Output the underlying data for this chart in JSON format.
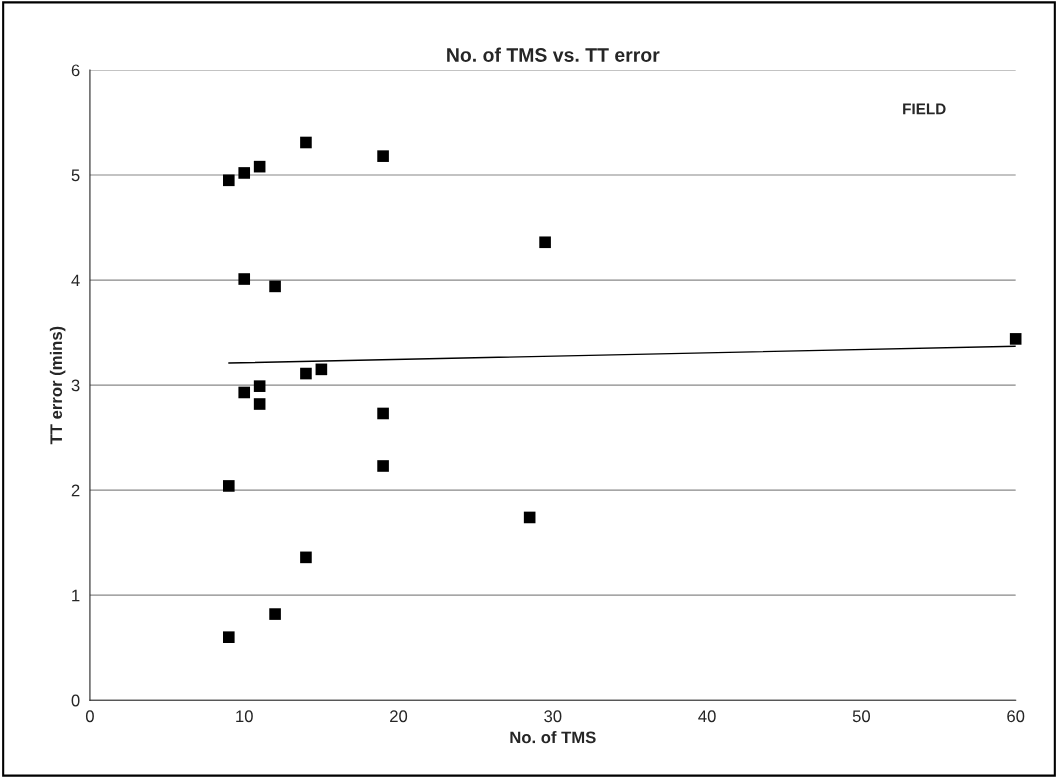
{
  "chart_data": {
    "type": "scatter",
    "title": "No. of TMS vs. TT error",
    "xlabel": "No. of TMS",
    "ylabel": "TT error (mins)",
    "annotations": [
      "FIELD"
    ],
    "series": [
      {
        "color": "#000000",
        "marker": "square",
        "x": [
          9,
          10,
          11,
          14,
          19,
          29.5,
          10,
          12,
          60,
          14,
          15,
          11,
          10,
          11,
          19,
          19,
          9,
          28.5,
          14,
          12,
          9
        ],
        "values": [
          4.95,
          5.02,
          5.08,
          5.31,
          5.18,
          4.36,
          4.01,
          3.94,
          3.44,
          3.11,
          3.15,
          2.99,
          2.93,
          2.82,
          2.73,
          2.23,
          2.04,
          1.74,
          1.36,
          0.82,
          0.6
        ]
      },
      {
        "type": "line",
        "color": "#000000",
        "marker": "none",
        "x": [
          9,
          60
        ],
        "values": [
          3.21,
          3.37
        ]
      }
    ],
    "xlim": [
      0,
      60
    ],
    "xticks": [
      0,
      10,
      20,
      30,
      40,
      50,
      60
    ],
    "ylim": [
      0,
      6
    ],
    "yticks": [
      0,
      1,
      2,
      3,
      4,
      5,
      6
    ],
    "grid": "y",
    "legend": false
  }
}
